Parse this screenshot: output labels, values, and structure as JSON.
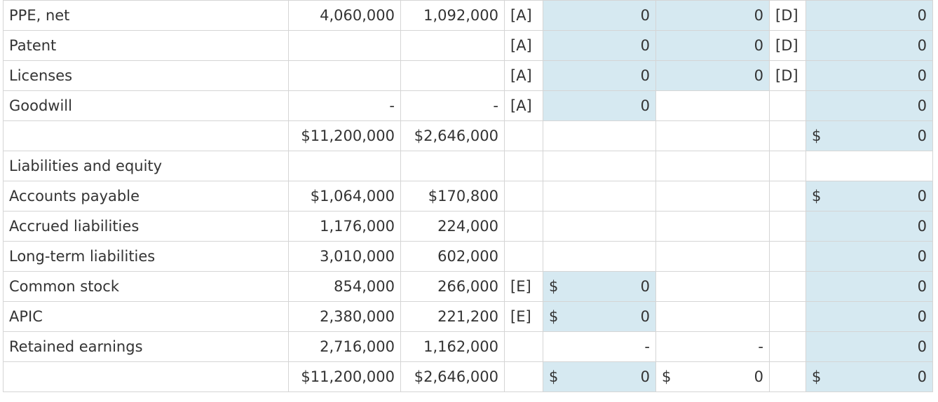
{
  "rows": [
    {
      "label": "PPE, net",
      "c1": "4,060,000",
      "c2": "1,092,000",
      "tagA": "[A]",
      "adj1_dollar": "",
      "adj1": "0",
      "adj2_dollar": "",
      "adj2": "0",
      "tagD": "[D]",
      "cons_dollar": "",
      "cons": "0"
    },
    {
      "label": "Patent",
      "c1": "",
      "c2": "",
      "tagA": "[A]",
      "adj1_dollar": "",
      "adj1": "0",
      "adj2_dollar": "",
      "adj2": "0",
      "tagD": "[D]",
      "cons_dollar": "",
      "cons": "0"
    },
    {
      "label": "Licenses",
      "c1": "",
      "c2": "",
      "tagA": "[A]",
      "adj1_dollar": "",
      "adj1": "0",
      "adj2_dollar": "",
      "adj2": "0",
      "tagD": "[D]",
      "cons_dollar": "",
      "cons": "0"
    },
    {
      "label": "Goodwill",
      "c1": "-",
      "c2": "-",
      "tagA": "[A]",
      "adj1_dollar": "",
      "adj1": "0",
      "adj2_dollar": "",
      "adj2": "",
      "tagD": "",
      "cons_dollar": "",
      "cons": "0"
    },
    {
      "label": "",
      "c1": "$11,200,000",
      "c2": "$2,646,000",
      "tagA": "",
      "adj1_dollar": "",
      "adj1": "",
      "adj2_dollar": "",
      "adj2": "",
      "tagD": "",
      "cons_dollar": "$",
      "cons": "0"
    },
    {
      "label": "Liabilities and equity",
      "c1": "",
      "c2": "",
      "tagA": "",
      "adj1_dollar": "",
      "adj1": "",
      "adj2_dollar": "",
      "adj2": "",
      "tagD": "",
      "cons_dollar": "",
      "cons": ""
    },
    {
      "label": "Accounts payable",
      "c1": "$1,064,000",
      "c2": "$170,800",
      "tagA": "",
      "adj1_dollar": "",
      "adj1": "",
      "adj2_dollar": "",
      "adj2": "",
      "tagD": "",
      "cons_dollar": "$",
      "cons": "0"
    },
    {
      "label": "Accrued liabilities",
      "c1": "1,176,000",
      "c2": "224,000",
      "tagA": "",
      "adj1_dollar": "",
      "adj1": "",
      "adj2_dollar": "",
      "adj2": "",
      "tagD": "",
      "cons_dollar": "",
      "cons": "0"
    },
    {
      "label": "Long-term liabilities",
      "c1": "3,010,000",
      "c2": "602,000",
      "tagA": "",
      "adj1_dollar": "",
      "adj1": "",
      "adj2_dollar": "",
      "adj2": "",
      "tagD": "",
      "cons_dollar": "",
      "cons": "0"
    },
    {
      "label": "Common stock",
      "c1": "854,000",
      "c2": "266,000",
      "tagA": "[E]",
      "adj1_dollar": "$",
      "adj1": "0",
      "adj2_dollar": "",
      "adj2": "",
      "tagD": "",
      "cons_dollar": "",
      "cons": "0"
    },
    {
      "label": "APIC",
      "c1": "2,380,000",
      "c2": "221,200",
      "tagA": "[E]",
      "adj1_dollar": "$",
      "adj1": "0",
      "adj2_dollar": "",
      "adj2": "",
      "tagD": "",
      "cons_dollar": "",
      "cons": "0"
    },
    {
      "label": "Retained earnings",
      "c1": "2,716,000",
      "c2": "1,162,000",
      "tagA": "",
      "adj1_dollar": "",
      "adj1": "-",
      "adj2_dollar": "",
      "adj2": "-",
      "tagD": "",
      "cons_dollar": "",
      "cons": "0"
    },
    {
      "label": "",
      "c1": "$11,200,000",
      "c2": "$2,646,000",
      "tagA": "",
      "adj1_dollar": "$",
      "adj1": "0",
      "adj2_dollar": "$",
      "adj2": "0",
      "tagD": "",
      "cons_dollar": "$",
      "cons": "0"
    }
  ]
}
